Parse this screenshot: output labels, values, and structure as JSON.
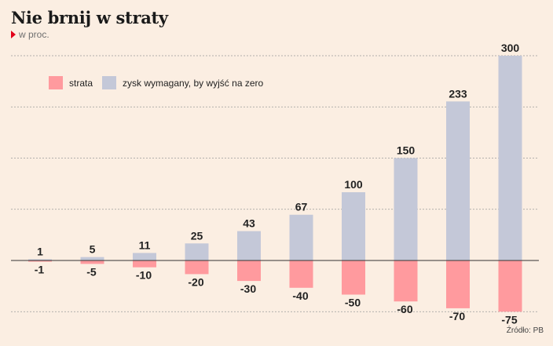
{
  "title": "Nie brnij w straty",
  "subtitle": "w proc.",
  "source": "Źródło: PB",
  "colors": {
    "loss": "#ff9a9e",
    "gain": "#c4c8d8",
    "background": "#fbeee2",
    "accent": "#e2001a"
  },
  "chart_data": {
    "type": "bar",
    "title": "Nie brnij w straty",
    "subtitle": "w proc.",
    "categories": [
      "",
      "",
      "",
      "",
      "",
      "",
      "",
      "",
      "",
      ""
    ],
    "series": [
      {
        "name": "strata",
        "values": [
          -1,
          -5,
          -10,
          -20,
          -30,
          -40,
          -50,
          -60,
          -70,
          -75
        ]
      },
      {
        "name": "zysk wymagany, by wyjść na zero",
        "values": [
          1,
          5,
          11,
          25,
          43,
          67,
          100,
          150,
          233,
          300
        ]
      }
    ],
    "ylim": [
      -75,
      300
    ],
    "grid": true,
    "legend_position": "top-left"
  }
}
